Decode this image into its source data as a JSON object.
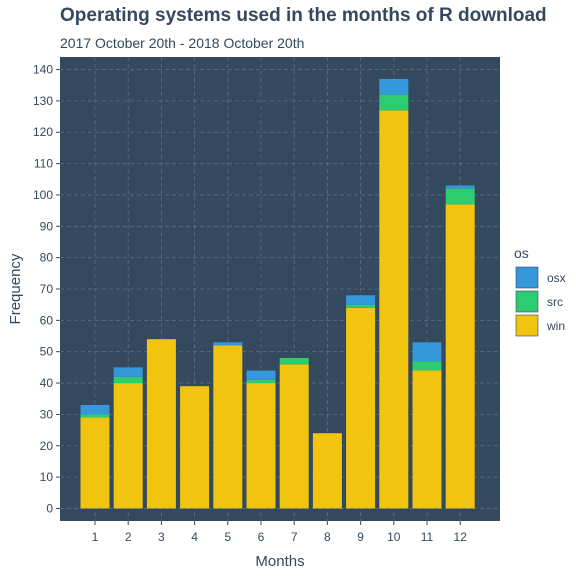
{
  "chart_data": {
    "type": "bar",
    "stacked": true,
    "title": "Operating systems used in the months of R download",
    "subtitle": "2017 October 20th - 2018 October 20th",
    "xlabel": "Months",
    "ylabel": "Frequency",
    "categories": [
      "1",
      "2",
      "3",
      "4",
      "5",
      "6",
      "7",
      "8",
      "9",
      "10",
      "11",
      "12"
    ],
    "series": [
      {
        "name": "win",
        "color": "#f1c40f",
        "values": [
          29,
          40,
          54,
          39,
          52,
          40,
          46,
          24,
          64,
          127,
          44,
          97
        ]
      },
      {
        "name": "src",
        "color": "#2ecc71",
        "values": [
          1,
          2,
          0,
          0,
          0,
          1,
          2,
          0,
          1,
          5,
          3,
          5
        ]
      },
      {
        "name": "osx",
        "color": "#3498db",
        "values": [
          3,
          3,
          0,
          0,
          1,
          3,
          0,
          0,
          3,
          5,
          6,
          1
        ]
      }
    ],
    "ylim": [
      -4,
      144
    ],
    "yticks": [
      0,
      10,
      20,
      30,
      40,
      50,
      60,
      70,
      80,
      90,
      100,
      110,
      120,
      130,
      140
    ],
    "grid": true,
    "legend": {
      "title": "os",
      "position": "right",
      "entries": [
        "osx",
        "src",
        "win"
      ]
    },
    "panel_color": "#34495e",
    "grid_color": "#5d6d7e",
    "text_color": "#34495e"
  }
}
